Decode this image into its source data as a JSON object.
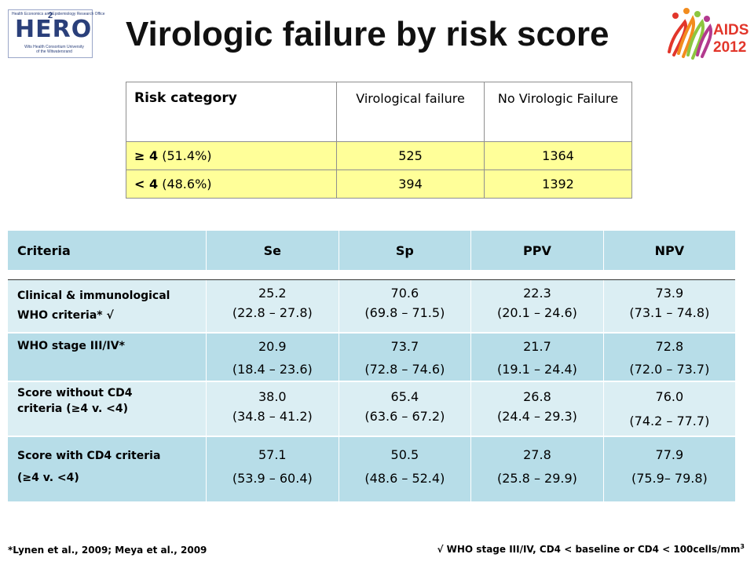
{
  "header": {
    "title": "Virologic failure by risk score",
    "hero_logo": {
      "word": "HERO",
      "sup": "2",
      "top_text": "Health Economics and Epidemiology Research Office",
      "sub_text": "Wits Health Consortium University of the Witwatersrand"
    },
    "aids_logo": {
      "line1": "AIDS",
      "line2": "2012"
    }
  },
  "risk_table": {
    "headers": [
      "Risk category",
      "Virological failure",
      "No Virologic Failure"
    ],
    "rows": [
      {
        "label_bold": "≥ 4",
        "label_rest": " (51.4%)",
        "vf": "525",
        "nvf": "1364"
      },
      {
        "label_bold": "< 4",
        "label_rest": " (48.6%)",
        "vf": "394",
        "nvf": "1392"
      }
    ],
    "highlight_color": "#ffff99"
  },
  "criteria_table": {
    "headers": [
      "Criteria",
      "Se",
      "Sp",
      "PPV",
      "NPV"
    ],
    "rows": [
      {
        "label_l1": "Clinical  & immunological",
        "label_l2": "WHO criteria* √",
        "se": [
          "25.2",
          "(22.8 – 27.8)"
        ],
        "sp": [
          "70.6",
          "(69.8 – 71.5)"
        ],
        "ppv": [
          "22.3",
          "(20.1 – 24.6)"
        ],
        "npv": [
          "73.9",
          "(73.1 – 74.8)"
        ]
      },
      {
        "label_l1": "WHO stage III/IV*",
        "label_l2": "",
        "se": [
          "20.9",
          "(18.4 – 23.6)"
        ],
        "sp": [
          "73.7",
          "(72.8 – 74.6)"
        ],
        "ppv": [
          "21.7",
          "(19.1 – 24.4)"
        ],
        "npv": [
          "72.8",
          "(72.0 – 73.7)"
        ]
      },
      {
        "label_l1": "Score without CD4",
        "label_l2": "criteria (≥4 v. <4)",
        "se": [
          "38.0",
          "(34.8 – 41.2)"
        ],
        "sp": [
          "65.4",
          "(63.6 – 67.2)"
        ],
        "ppv": [
          "26.8",
          "(24.4 – 29.3)"
        ],
        "npv": [
          "76.0",
          "(74.2 – 77.7)"
        ]
      },
      {
        "label_l1": "Score with CD4 criteria",
        "label_l2": "(≥4 v. <4)",
        "se": [
          "57.1",
          "(53.9 – 60.4)"
        ],
        "sp": [
          "50.5",
          "(48.6 – 52.4)"
        ],
        "ppv": [
          "27.8",
          "(25.8 – 29.9)"
        ],
        "npv": [
          "77.9",
          "(75.9– 79.8)"
        ]
      }
    ],
    "header_color": "#b7dde8",
    "light_color": "#dbeef3"
  },
  "footnotes": {
    "left": "*Lynen et al., 2009; Meya et al., 2009",
    "right": "√ WHO stage III/IV, CD4 < baseline or CD4 < 100cells/mm",
    "right_sup": "3"
  }
}
